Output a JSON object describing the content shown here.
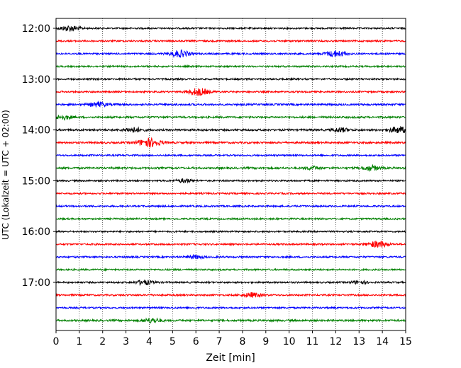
{
  "chart_data": {
    "type": "line",
    "title": "",
    "xlabel": "Zeit  [min]",
    "ylabel": "UTC (Lokalzeit = UTC + 02:00)",
    "xlim": [
      0,
      15
    ],
    "x_ticks": [
      "0",
      "1",
      "2",
      "3",
      "4",
      "5",
      "6",
      "7",
      "8",
      "9",
      "10",
      "11",
      "12",
      "13",
      "14",
      "15"
    ],
    "y_tick_labels": [
      "12:00",
      "13:00",
      "14:00",
      "15:00",
      "16:00",
      "17:00"
    ],
    "grid_x": true,
    "trace_interval_minutes": 15,
    "start_time": "12:00",
    "colors_cycle": [
      "#000000",
      "#ff0000",
      "#0000ff",
      "#008000"
    ],
    "traces": [
      {
        "start": "12:00",
        "base_amplitude": 0.3,
        "events": [
          {
            "minute": 0.6,
            "amplitude": 1.0
          }
        ]
      },
      {
        "start": "12:15",
        "base_amplitude": 0.3,
        "events": []
      },
      {
        "start": "12:30",
        "base_amplitude": 0.3,
        "events": [
          {
            "minute": 5.3,
            "amplitude": 1.2
          },
          {
            "minute": 12.0,
            "amplitude": 1.1
          }
        ]
      },
      {
        "start": "12:45",
        "base_amplitude": 0.3,
        "events": []
      },
      {
        "start": "13:00",
        "base_amplitude": 0.3,
        "events": []
      },
      {
        "start": "13:15",
        "base_amplitude": 0.3,
        "events": [
          {
            "minute": 6.1,
            "amplitude": 1.3
          }
        ]
      },
      {
        "start": "13:30",
        "base_amplitude": 0.35,
        "events": [
          {
            "minute": 1.8,
            "amplitude": 0.8
          }
        ]
      },
      {
        "start": "13:45",
        "base_amplitude": 0.35,
        "events": [
          {
            "minute": 0.3,
            "amplitude": 0.7
          }
        ]
      },
      {
        "start": "14:00",
        "base_amplitude": 0.35,
        "events": [
          {
            "minute": 3.3,
            "amplitude": 0.8
          },
          {
            "minute": 12.2,
            "amplitude": 0.7
          },
          {
            "minute": 14.7,
            "amplitude": 1.1
          }
        ]
      },
      {
        "start": "14:15",
        "base_amplitude": 0.35,
        "events": [
          {
            "minute": 4.0,
            "amplitude": 1.5
          }
        ]
      },
      {
        "start": "14:30",
        "base_amplitude": 0.3,
        "events": []
      },
      {
        "start": "14:45",
        "base_amplitude": 0.35,
        "events": [
          {
            "minute": 13.5,
            "amplitude": 0.8
          },
          {
            "minute": 11.0,
            "amplitude": 0.5
          }
        ]
      },
      {
        "start": "15:00",
        "base_amplitude": 0.3,
        "events": [
          {
            "minute": 5.5,
            "amplitude": 0.6
          }
        ]
      },
      {
        "start": "15:15",
        "base_amplitude": 0.3,
        "events": []
      },
      {
        "start": "15:30",
        "base_amplitude": 0.3,
        "events": []
      },
      {
        "start": "15:45",
        "base_amplitude": 0.3,
        "events": []
      },
      {
        "start": "16:00",
        "base_amplitude": 0.3,
        "events": []
      },
      {
        "start": "16:15",
        "base_amplitude": 0.3,
        "events": [
          {
            "minute": 13.8,
            "amplitude": 1.1
          }
        ]
      },
      {
        "start": "16:30",
        "base_amplitude": 0.3,
        "events": [
          {
            "minute": 6.0,
            "amplitude": 0.6
          }
        ]
      },
      {
        "start": "16:45",
        "base_amplitude": 0.3,
        "events": []
      },
      {
        "start": "17:00",
        "base_amplitude": 0.3,
        "events": [
          {
            "minute": 3.8,
            "amplitude": 0.8
          },
          {
            "minute": 13.0,
            "amplitude": 0.5
          }
        ]
      },
      {
        "start": "17:15",
        "base_amplitude": 0.3,
        "events": [
          {
            "minute": 8.4,
            "amplitude": 0.8
          }
        ]
      },
      {
        "start": "17:30",
        "base_amplitude": 0.3,
        "events": []
      },
      {
        "start": "17:45",
        "base_amplitude": 0.35,
        "events": [
          {
            "minute": 4.1,
            "amplitude": 0.8
          }
        ]
      }
    ]
  }
}
